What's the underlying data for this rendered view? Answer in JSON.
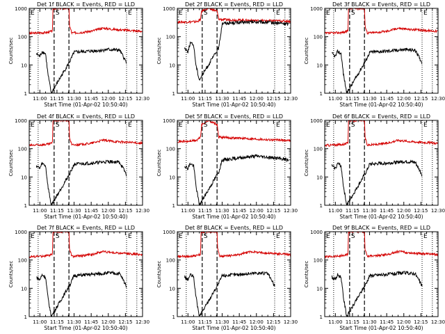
{
  "figure": {
    "colors": {
      "events": "#000000",
      "lld": "#d40000",
      "axes": "#000000",
      "background": "#ffffff"
    },
    "x_tick_labels": [
      "11:00",
      "11:15",
      "11:30",
      "11:45",
      "12:00",
      "12:15",
      "12:30"
    ],
    "y_tick_labels": [
      "1",
      "10",
      "100",
      "1000"
    ],
    "ylabel": "Counts/sec",
    "xlabel": "Start Time (01-Apr-02 10:50:40)",
    "marker_labels": [
      "E",
      "S",
      "E"
    ]
  },
  "chart_data": [
    {
      "type": "line",
      "title": "Det 1f BLACK = Events, RED = LLD",
      "xlabel": "Start Time (01-Apr-02 10:50:40)",
      "ylabel": "Counts/sec",
      "y_scale": "log",
      "xlim": [
        "10:50:40",
        "12:30:00"
      ],
      "ylim": [
        1,
        1000
      ],
      "vlines_dotted": [
        "10:58:30",
        "12:16:00",
        "12:25:00"
      ],
      "vlines_dashed": [
        "11:12:30",
        "11:25:30"
      ],
      "series": [
        {
          "color": "red",
          "x": [
            "10:50:40",
            "10:58:00",
            "11:05:00",
            "11:08:00",
            "11:11:00",
            "11:11:30",
            "11:25:30",
            "11:26:00",
            "11:28:00",
            "11:35:00",
            "11:45:00",
            "11:55:00",
            "12:05:00",
            "12:15:00",
            "12:30:00"
          ],
          "y": [
            130,
            135,
            140,
            145,
            160,
            1000,
            1000,
            250,
            135,
            140,
            155,
            200,
            180,
            170,
            155
          ]
        },
        {
          "color": "black",
          "x": [
            "10:57:00",
            "11:00:00",
            "11:02:00",
            "11:05:00",
            "11:07:00",
            "11:10:00",
            "11:27:00",
            "11:30:00",
            "11:40:00",
            "11:50:00",
            "12:00:00",
            "12:10:00",
            "12:16:00"
          ],
          "y": [
            25,
            20,
            30,
            25,
            5,
            1,
            15,
            28,
            30,
            32,
            35,
            33,
            12
          ]
        }
      ]
    },
    {
      "type": "line",
      "title": "Det 2f BLACK = Events, RED = LLD",
      "xlabel": "Start Time (01-Apr-02 10:50:40)",
      "ylabel": "Counts/sec",
      "y_scale": "log",
      "xlim": [
        "10:50:40",
        "12:30:00"
      ],
      "ylim": [
        1,
        1000
      ],
      "vlines_dotted": [
        "10:58:30",
        "12:16:00",
        "12:25:00"
      ],
      "vlines_dashed": [
        "11:12:30",
        "11:25:30"
      ],
      "series": [
        {
          "color": "red",
          "x": [
            "10:50:40",
            "11:00:00",
            "11:08:00",
            "11:11:00",
            "11:12:00",
            "11:18:00",
            "11:25:30",
            "11:27:00",
            "11:30:00",
            "11:40:00",
            "11:50:00",
            "12:00:00",
            "12:10:00",
            "12:20:00",
            "12:30:00"
          ],
          "y": [
            330,
            330,
            340,
            400,
            800,
            1000,
            800,
            420,
            400,
            390,
            380,
            370,
            365,
            360,
            350
          ]
        },
        {
          "color": "black",
          "x": [
            "10:57:00",
            "11:00:00",
            "11:02:00",
            "11:05:00",
            "11:07:00",
            "11:10:00",
            "11:27:00",
            "11:30:00",
            "11:40:00",
            "11:50:00",
            "12:00:00",
            "12:10:00",
            "12:20:00",
            "12:28:00"
          ],
          "y": [
            40,
            30,
            60,
            50,
            10,
            3,
            40,
            300,
            310,
            320,
            330,
            320,
            300,
            280
          ]
        }
      ]
    },
    {
      "type": "line",
      "title": "Det 3f BLACK = Events, RED = LLD",
      "xlabel": "Start Time (01-Apr-02 10:50:40)",
      "ylabel": "Counts/sec",
      "y_scale": "log",
      "xlim": [
        "10:50:40",
        "12:30:00"
      ],
      "ylim": [
        1,
        1000
      ],
      "vlines_dotted": [
        "10:58:30",
        "12:16:00",
        "12:25:00"
      ],
      "vlines_dashed": [
        "11:12:30",
        "11:25:30"
      ],
      "series": [
        {
          "color": "red",
          "x": [
            "10:50:40",
            "10:58:00",
            "11:05:00",
            "11:08:00",
            "11:11:00",
            "11:11:30",
            "11:25:30",
            "11:26:00",
            "11:28:00",
            "11:35:00",
            "11:45:00",
            "11:55:00",
            "12:05:00",
            "12:15:00",
            "12:30:00"
          ],
          "y": [
            130,
            135,
            140,
            145,
            160,
            1000,
            1000,
            250,
            135,
            140,
            155,
            200,
            180,
            170,
            155
          ]
        },
        {
          "color": "black",
          "x": [
            "10:57:00",
            "11:00:00",
            "11:02:00",
            "11:05:00",
            "11:07:00",
            "11:10:00",
            "11:27:00",
            "11:30:00",
            "11:40:00",
            "11:50:00",
            "12:00:00",
            "12:10:00",
            "12:16:00"
          ],
          "y": [
            25,
            20,
            30,
            25,
            5,
            1,
            15,
            28,
            30,
            32,
            35,
            33,
            12
          ]
        }
      ]
    },
    {
      "type": "line",
      "title": "Det 4f BLACK = Events, RED = LLD",
      "xlabel": "Start Time (01-Apr-02 10:50:40)",
      "ylabel": "Counts/sec",
      "y_scale": "log",
      "xlim": [
        "10:50:40",
        "12:30:00"
      ],
      "ylim": [
        1,
        1000
      ],
      "vlines_dotted": [
        "10:58:30",
        "12:16:00",
        "12:25:00"
      ],
      "vlines_dashed": [
        "11:12:30",
        "11:25:30"
      ],
      "series": [
        {
          "color": "red",
          "x": [
            "10:50:40",
            "10:58:00",
            "11:05:00",
            "11:08:00",
            "11:11:00",
            "11:11:30",
            "11:25:30",
            "11:26:00",
            "11:28:00",
            "11:35:00",
            "11:45:00",
            "11:55:00",
            "12:05:00",
            "12:15:00",
            "12:30:00"
          ],
          "y": [
            130,
            135,
            140,
            145,
            160,
            1000,
            1000,
            250,
            135,
            140,
            155,
            200,
            180,
            170,
            155
          ]
        },
        {
          "color": "black",
          "x": [
            "10:57:00",
            "11:00:00",
            "11:02:00",
            "11:05:00",
            "11:07:00",
            "11:10:00",
            "11:27:00",
            "11:30:00",
            "11:40:00",
            "11:50:00",
            "12:00:00",
            "12:10:00",
            "12:16:00"
          ],
          "y": [
            25,
            20,
            30,
            25,
            5,
            1,
            15,
            28,
            30,
            32,
            35,
            33,
            12
          ]
        }
      ]
    },
    {
      "type": "line",
      "title": "Det 5f BLACK = Events, RED = LLD",
      "xlabel": "Start Time (01-Apr-02 10:50:40)",
      "ylabel": "Counts/sec",
      "y_scale": "log",
      "xlim": [
        "10:50:40",
        "12:30:00"
      ],
      "ylim": [
        1,
        1000
      ],
      "vlines_dotted": [
        "10:58:30",
        "12:16:00",
        "12:25:00"
      ],
      "vlines_dashed": [
        "11:12:30",
        "11:25:30"
      ],
      "series": [
        {
          "color": "red",
          "x": [
            "10:50:40",
            "11:00:00",
            "11:08:00",
            "11:11:00",
            "11:12:00",
            "11:18:00",
            "11:25:30",
            "11:27:00",
            "11:30:00",
            "11:40:00",
            "11:50:00",
            "12:00:00",
            "12:10:00",
            "12:20:00",
            "12:30:00"
          ],
          "y": [
            180,
            180,
            200,
            260,
            700,
            1000,
            700,
            260,
            250,
            240,
            230,
            220,
            210,
            200,
            195
          ]
        },
        {
          "color": "black",
          "x": [
            "10:57:00",
            "11:00:00",
            "11:02:00",
            "11:05:00",
            "11:07:00",
            "11:10:00",
            "11:27:00",
            "11:30:00",
            "11:40:00",
            "11:50:00",
            "12:00:00",
            "12:10:00",
            "12:20:00",
            "12:28:00"
          ],
          "y": [
            25,
            20,
            30,
            25,
            5,
            1,
            15,
            40,
            45,
            50,
            55,
            50,
            45,
            40
          ]
        }
      ]
    },
    {
      "type": "line",
      "title": "Det 6f BLACK = Events, RED = LLD",
      "xlabel": "Start Time (01-Apr-02 10:50:40)",
      "ylabel": "Counts/sec",
      "y_scale": "log",
      "xlim": [
        "10:50:40",
        "12:30:00"
      ],
      "ylim": [
        1,
        1000
      ],
      "vlines_dotted": [
        "10:58:30",
        "12:16:00",
        "12:25:00"
      ],
      "vlines_dashed": [
        "11:12:30",
        "11:25:30"
      ],
      "series": [
        {
          "color": "red",
          "x": [
            "10:50:40",
            "10:58:00",
            "11:05:00",
            "11:08:00",
            "11:11:00",
            "11:11:30",
            "11:25:30",
            "11:26:00",
            "11:28:00",
            "11:35:00",
            "11:45:00",
            "11:55:00",
            "12:05:00",
            "12:15:00",
            "12:30:00"
          ],
          "y": [
            130,
            135,
            140,
            145,
            160,
            1000,
            1000,
            250,
            135,
            140,
            155,
            200,
            180,
            170,
            155
          ]
        },
        {
          "color": "black",
          "x": [
            "10:57:00",
            "11:00:00",
            "11:02:00",
            "11:05:00",
            "11:07:00",
            "11:10:00",
            "11:27:00",
            "11:30:00",
            "11:40:00",
            "11:50:00",
            "12:00:00",
            "12:10:00",
            "12:16:00"
          ],
          "y": [
            25,
            20,
            30,
            25,
            5,
            1,
            15,
            28,
            30,
            32,
            35,
            33,
            12
          ]
        }
      ]
    },
    {
      "type": "line",
      "title": "Det 7f BLACK = Events, RED = LLD",
      "xlabel": "Start Time (01-Apr-02 10:50:40)",
      "ylabel": "Counts/sec",
      "y_scale": "log",
      "xlim": [
        "10:50:40",
        "12:30:00"
      ],
      "ylim": [
        1,
        1000
      ],
      "vlines_dotted": [
        "10:58:30",
        "12:16:00",
        "12:25:00"
      ],
      "vlines_dashed": [
        "11:12:30",
        "11:25:30"
      ],
      "series": [
        {
          "color": "red",
          "x": [
            "10:50:40",
            "10:58:00",
            "11:05:00",
            "11:08:00",
            "11:11:00",
            "11:11:30",
            "11:25:30",
            "11:26:00",
            "11:28:00",
            "11:35:00",
            "11:45:00",
            "11:55:00",
            "12:05:00",
            "12:15:00",
            "12:30:00"
          ],
          "y": [
            130,
            135,
            140,
            145,
            160,
            1000,
            1000,
            250,
            135,
            140,
            155,
            200,
            180,
            170,
            155
          ]
        },
        {
          "color": "black",
          "x": [
            "10:57:00",
            "11:00:00",
            "11:02:00",
            "11:05:00",
            "11:07:00",
            "11:10:00",
            "11:27:00",
            "11:30:00",
            "11:40:00",
            "11:50:00",
            "12:00:00",
            "12:10:00",
            "12:16:00"
          ],
          "y": [
            25,
            20,
            30,
            25,
            5,
            1,
            15,
            28,
            30,
            32,
            35,
            33,
            12
          ]
        }
      ]
    },
    {
      "type": "line",
      "title": "Det 8f BLACK = Events, RED = LLD",
      "xlabel": "Start Time (01-Apr-02 10:50:40)",
      "ylabel": "Counts/sec",
      "y_scale": "log",
      "xlim": [
        "10:50:40",
        "12:30:00"
      ],
      "ylim": [
        1,
        1000
      ],
      "vlines_dotted": [
        "10:58:30",
        "12:16:00",
        "12:25:00"
      ],
      "vlines_dashed": [
        "11:12:30",
        "11:25:30"
      ],
      "series": [
        {
          "color": "red",
          "x": [
            "10:50:40",
            "10:58:00",
            "11:05:00",
            "11:08:00",
            "11:11:00",
            "11:11:30",
            "11:25:30",
            "11:26:00",
            "11:28:00",
            "11:35:00",
            "11:45:00",
            "11:55:00",
            "12:05:00",
            "12:15:00",
            "12:30:00"
          ],
          "y": [
            130,
            135,
            140,
            145,
            160,
            1000,
            1000,
            250,
            135,
            140,
            155,
            200,
            180,
            170,
            155
          ]
        },
        {
          "color": "black",
          "x": [
            "10:57:00",
            "11:00:00",
            "11:02:00",
            "11:05:00",
            "11:07:00",
            "11:10:00",
            "11:27:00",
            "11:30:00",
            "11:40:00",
            "11:50:00",
            "12:00:00",
            "12:10:00",
            "12:16:00"
          ],
          "y": [
            25,
            20,
            30,
            25,
            5,
            1,
            15,
            28,
            30,
            32,
            35,
            33,
            12
          ]
        }
      ]
    },
    {
      "type": "line",
      "title": "Det 9f BLACK = Events, RED = LLD",
      "xlabel": "Start Time (01-Apr-02 10:50:40)",
      "ylabel": "Counts/sec",
      "y_scale": "log",
      "xlim": [
        "10:50:40",
        "12:30:00"
      ],
      "ylim": [
        1,
        1000
      ],
      "vlines_dotted": [
        "10:58:30",
        "12:16:00",
        "12:25:00"
      ],
      "vlines_dashed": [
        "11:12:30",
        "11:25:30"
      ],
      "series": [
        {
          "color": "red",
          "x": [
            "10:50:40",
            "10:58:00",
            "11:05:00",
            "11:08:00",
            "11:11:00",
            "11:11:30",
            "11:25:30",
            "11:26:00",
            "11:28:00",
            "11:35:00",
            "11:45:00",
            "11:55:00",
            "12:05:00",
            "12:15:00",
            "12:30:00"
          ],
          "y": [
            130,
            135,
            140,
            145,
            160,
            1000,
            1000,
            250,
            135,
            140,
            155,
            200,
            180,
            170,
            155
          ]
        },
        {
          "color": "black",
          "x": [
            "10:57:00",
            "11:00:00",
            "11:02:00",
            "11:05:00",
            "11:07:00",
            "11:10:00",
            "11:27:00",
            "11:30:00",
            "11:40:00",
            "11:50:00",
            "12:00:00",
            "12:10:00",
            "12:16:00"
          ],
          "y": [
            25,
            20,
            30,
            25,
            5,
            1,
            15,
            28,
            30,
            32,
            35,
            33,
            12
          ]
        }
      ]
    }
  ]
}
